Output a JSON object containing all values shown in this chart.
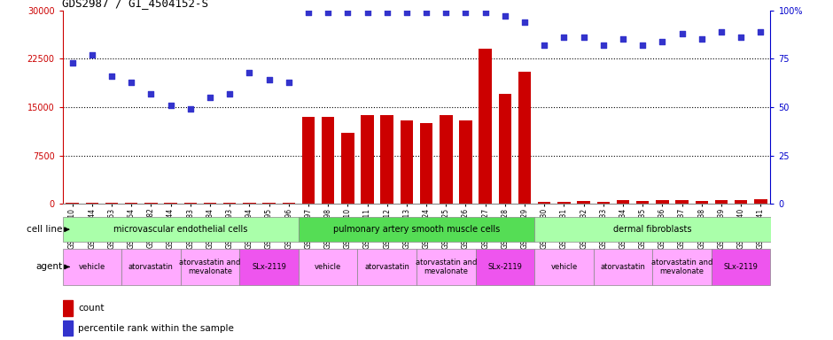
{
  "title": "GDS2987 / GI_4504152-S",
  "samples": [
    "GSM214810",
    "GSM215244",
    "GSM215253",
    "GSM215254",
    "GSM215282",
    "GSM215344",
    "GSM215283",
    "GSM215284",
    "GSM215293",
    "GSM215294",
    "GSM215295",
    "GSM215296",
    "GSM215297",
    "GSM215298",
    "GSM215310",
    "GSM215311",
    "GSM215312",
    "GSM215313",
    "GSM215324",
    "GSM215325",
    "GSM215326",
    "GSM215327",
    "GSM215328",
    "GSM215329",
    "GSM215330",
    "GSM215331",
    "GSM215332",
    "GSM215333",
    "GSM215334",
    "GSM215335",
    "GSM215336",
    "GSM215337",
    "GSM215338",
    "GSM215339",
    "GSM215340",
    "GSM215341"
  ],
  "counts": [
    150,
    150,
    150,
    150,
    150,
    150,
    150,
    150,
    150,
    150,
    150,
    150,
    13500,
    13500,
    11000,
    13800,
    13800,
    13000,
    12500,
    13800,
    13000,
    24000,
    17000,
    20500,
    350,
    350,
    500,
    350,
    600,
    450,
    600,
    600,
    500,
    600,
    600,
    800
  ],
  "percentile": [
    73,
    77,
    66,
    63,
    57,
    51,
    49,
    55,
    57,
    68,
    64,
    63,
    99,
    99,
    99,
    99,
    99,
    99,
    99,
    99,
    99,
    99,
    97,
    94,
    82,
    86,
    86,
    82,
    85,
    82,
    84,
    88,
    85,
    89,
    86,
    89
  ],
  "ylim_left": [
    0,
    30000
  ],
  "ylim_right": [
    0,
    100
  ],
  "yticks_left": [
    0,
    7500,
    15000,
    22500,
    30000
  ],
  "yticks_right": [
    0,
    25,
    50,
    75,
    100
  ],
  "bar_color": "#cc0000",
  "dot_color": "#3333cc",
  "bg_color": "#e8e8e8",
  "plot_bg": "#ffffff",
  "grid_color": "#000000",
  "title_fontsize": 9,
  "tick_fontsize": 5.5,
  "label_fontsize": 7.5,
  "cell_groups": [
    {
      "label": "microvascular endothelial cells",
      "start": 0,
      "end": 12,
      "color": "#aaffaa"
    },
    {
      "label": "pulmonary artery smooth muscle cells",
      "start": 12,
      "end": 24,
      "color": "#55dd55"
    },
    {
      "label": "dermal fibroblasts",
      "start": 24,
      "end": 36,
      "color": "#aaffaa"
    }
  ],
  "agent_groups": [
    {
      "label": "vehicle",
      "start": 0,
      "end": 3,
      "color": "#ffaaff"
    },
    {
      "label": "atorvastatin",
      "start": 3,
      "end": 6,
      "color": "#ffaaff"
    },
    {
      "label": "atorvastatin and\nmevalonate",
      "start": 6,
      "end": 9,
      "color": "#ffaaff"
    },
    {
      "label": "SLx-2119",
      "start": 9,
      "end": 12,
      "color": "#ee55ee"
    },
    {
      "label": "vehicle",
      "start": 12,
      "end": 15,
      "color": "#ffaaff"
    },
    {
      "label": "atorvastatin",
      "start": 15,
      "end": 18,
      "color": "#ffaaff"
    },
    {
      "label": "atorvastatin and\nmevalonate",
      "start": 18,
      "end": 21,
      "color": "#ffaaff"
    },
    {
      "label": "SLx-2119",
      "start": 21,
      "end": 24,
      "color": "#ee55ee"
    },
    {
      "label": "vehicle",
      "start": 24,
      "end": 27,
      "color": "#ffaaff"
    },
    {
      "label": "atorvastatin",
      "start": 27,
      "end": 30,
      "color": "#ffaaff"
    },
    {
      "label": "atorvastatin and\nmevalonate",
      "start": 30,
      "end": 33,
      "color": "#ffaaff"
    },
    {
      "label": "SLx-2119",
      "start": 33,
      "end": 36,
      "color": "#ee55ee"
    }
  ]
}
